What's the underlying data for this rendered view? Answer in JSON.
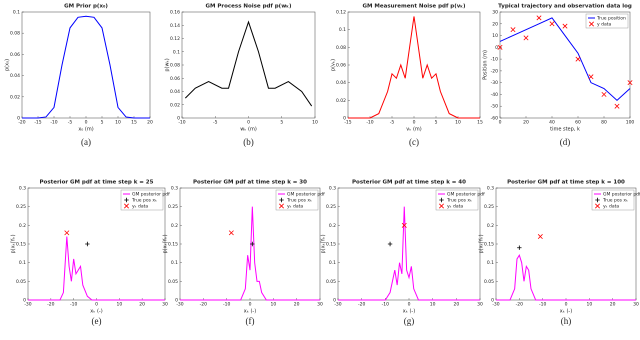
{
  "chart_data": [
    {
      "type": "line",
      "title": "GM Prior p(x₀)",
      "x_label": "x₀ (m)",
      "y_label": "p(x₀)",
      "caption": "(a)",
      "xlim": [
        -20,
        20
      ],
      "ylim": [
        0,
        0.1
      ],
      "xticks": [
        -20,
        -15,
        -10,
        -5,
        0,
        5,
        10,
        15,
        20
      ],
      "yticks": [
        0,
        0.02,
        0.04,
        0.06,
        0.08,
        0.1
      ],
      "x": [
        -20,
        -17.5,
        -15,
        -12.5,
        -10,
        -7.5,
        -5,
        -2.5,
        0,
        2.5,
        5,
        7.5,
        10,
        12.5,
        15,
        17.5,
        20
      ],
      "series": [
        {
          "color": "#0000ff",
          "values": [
            0,
            0,
            0,
            0.001,
            0.01,
            0.05,
            0.085,
            0.095,
            0.096,
            0.095,
            0.085,
            0.05,
            0.01,
            0.001,
            0,
            0,
            0
          ]
        }
      ]
    },
    {
      "type": "line",
      "title": "GM Process Noise pdf p(wₖ)",
      "x_label": "wₖ (m)",
      "y_label": "p(wₖ)",
      "caption": "(b)",
      "xlim": [
        -10,
        10
      ],
      "ylim": [
        0,
        0.16
      ],
      "xticks": [
        -10,
        -5,
        0,
        5,
        10
      ],
      "yticks": [
        0,
        0.02,
        0.04,
        0.06,
        0.08,
        0.1,
        0.12,
        0.14,
        0.16
      ],
      "x": [
        -9.5,
        -8,
        -6,
        -4,
        -3,
        -1.5,
        0,
        1.5,
        3,
        4,
        6,
        8,
        9.5
      ],
      "series": [
        {
          "color": "#000000",
          "values": [
            0.03,
            0.045,
            0.055,
            0.045,
            0.045,
            0.1,
            0.145,
            0.1,
            0.045,
            0.045,
            0.055,
            0.04,
            0.018
          ]
        }
      ]
    },
    {
      "type": "line",
      "title": "GM Measurement Noise pdf p(vₖ)",
      "x_label": "vₖ (m)",
      "y_label": "p(vₖ)",
      "caption": "(c)",
      "xlim": [
        -15,
        15
      ],
      "ylim": [
        0,
        0.12
      ],
      "xticks": [
        -15,
        -10,
        -5,
        0,
        5,
        10,
        15
      ],
      "yticks": [
        0,
        0.02,
        0.04,
        0.06,
        0.08,
        0.1,
        0.12
      ],
      "x": [
        -15,
        -10,
        -8,
        -6,
        -5,
        -4,
        -3,
        -2,
        -1,
        0,
        1,
        2,
        3,
        4,
        5,
        6,
        8,
        10,
        15
      ],
      "series": [
        {
          "color": "#ff0000",
          "values": [
            0,
            0,
            0.005,
            0.03,
            0.05,
            0.045,
            0.06,
            0.045,
            0.08,
            0.115,
            0.08,
            0.045,
            0.06,
            0.045,
            0.05,
            0.03,
            0.005,
            0,
            0
          ]
        }
      ]
    },
    {
      "type": "line",
      "title": "Typical trajectory and observation data log",
      "x_label": "time step, k",
      "y_label": "Position (m)",
      "caption": "(d)",
      "xlim": [
        0,
        100
      ],
      "ylim": [
        -60,
        30
      ],
      "xticks": [
        0,
        20,
        40,
        60,
        80,
        100
      ],
      "yticks": [
        -60,
        -50,
        -40,
        -30,
        -20,
        -10,
        0,
        10,
        20,
        30
      ],
      "x": [
        0,
        10,
        20,
        30,
        40,
        50,
        60,
        70,
        80,
        90,
        100
      ],
      "series": [
        {
          "name": "True position",
          "color": "#0000ff",
          "values": [
            5,
            10,
            15,
            20,
            25,
            10,
            -5,
            -30,
            -35,
            -45,
            -35
          ]
        },
        {
          "name": "y data",
          "color": "#ff0000",
          "style": "cross",
          "values": [
            0,
            15,
            8,
            25,
            20,
            18,
            -10,
            -25,
            -40,
            -50,
            -30
          ]
        }
      ]
    },
    {
      "type": "line",
      "title": "Posterior GM pdf at time step k = 25",
      "x_label": "xₖ (-)",
      "y_label": "p(xₖ|Yₖ)",
      "caption": "(e)",
      "xlim": [
        -30,
        30
      ],
      "ylim": [
        0,
        0.3
      ],
      "xticks": [
        -30,
        -20,
        -10,
        0,
        10,
        20,
        30
      ],
      "yticks": [
        0,
        0.05,
        0.1,
        0.15,
        0.2,
        0.25,
        0.3
      ],
      "x": [
        -30,
        -16,
        -14.5,
        -13,
        -12,
        -11,
        -10,
        -9,
        -8,
        -7,
        -6,
        -4,
        -2,
        30
      ],
      "series": [
        {
          "name": "GM posterior pdf",
          "color": "#ff00ff",
          "values": [
            0,
            0,
            0.02,
            0.17,
            0.09,
            0.05,
            0.11,
            0.07,
            0.08,
            0.09,
            0.04,
            0.01,
            0,
            0
          ]
        },
        {
          "name": "True pos xₖ",
          "color": "#000000",
          "style": "plus",
          "x": [
            -4
          ],
          "values": [
            0.15
          ]
        },
        {
          "name": "yₖ data",
          "color": "#ff0000",
          "style": "cross",
          "x": [
            -13
          ],
          "values": [
            0.18
          ]
        }
      ]
    },
    {
      "type": "line",
      "title": "Posterior GM pdf at time step k = 30",
      "x_label": "xₖ (-)",
      "y_label": "p(xₖ|Yₖ)",
      "caption": "(f)",
      "xlim": [
        -30,
        30
      ],
      "ylim": [
        0,
        0.3
      ],
      "xticks": [
        -30,
        -20,
        -10,
        0,
        10,
        20,
        30
      ],
      "yticks": [
        0,
        0.05,
        0.1,
        0.15,
        0.2,
        0.25,
        0.3
      ],
      "x": [
        -30,
        -4,
        -2,
        -1,
        0,
        1,
        2,
        3,
        4,
        5,
        7,
        30
      ],
      "series": [
        {
          "name": "GM posterior pdf",
          "color": "#ff00ff",
          "values": [
            0,
            0,
            0.03,
            0.12,
            0.08,
            0.25,
            0.1,
            0.05,
            0.05,
            0.02,
            0,
            0
          ]
        },
        {
          "name": "True pos xₖ",
          "color": "#000000",
          "style": "plus",
          "x": [
            1
          ],
          "values": [
            0.15
          ]
        },
        {
          "name": "yₖ data",
          "color": "#ff0000",
          "style": "cross",
          "x": [
            -8
          ],
          "values": [
            0.18
          ]
        }
      ]
    },
    {
      "type": "line",
      "title": "Posterior GM pdf at time step k = 40",
      "x_label": "xₖ (-)",
      "y_label": "p(xₖ|Yₖ)",
      "caption": "(g)",
      "xlim": [
        -30,
        30
      ],
      "ylim": [
        0,
        0.3
      ],
      "xticks": [
        -30,
        -20,
        -10,
        0,
        10,
        20,
        30
      ],
      "yticks": [
        0,
        0.05,
        0.1,
        0.15,
        0.2,
        0.25,
        0.3
      ],
      "x": [
        -30,
        -10,
        -8,
        -6,
        -5,
        -4,
        -3,
        -2,
        -1,
        0,
        1,
        2,
        4,
        30
      ],
      "series": [
        {
          "name": "GM posterior pdf",
          "color": "#ff00ff",
          "values": [
            0,
            0,
            0.02,
            0.08,
            0.04,
            0.1,
            0.07,
            0.25,
            0.08,
            0.06,
            0.09,
            0.03,
            0,
            0
          ]
        },
        {
          "name": "True pos xₖ",
          "color": "#000000",
          "style": "plus",
          "x": [
            -8
          ],
          "values": [
            0.15
          ]
        },
        {
          "name": "yₖ data",
          "color": "#ff0000",
          "style": "cross",
          "x": [
            -2
          ],
          "values": [
            0.2
          ]
        }
      ]
    },
    {
      "type": "line",
      "title": "Posterior GM pdf at time step k = 100",
      "x_label": "xₖ (-)",
      "y_label": "p(xₖ|Yₖ)",
      "caption": "(h)",
      "xlim": [
        -30,
        30
      ],
      "ylim": [
        0,
        0.3
      ],
      "xticks": [
        -30,
        -20,
        -10,
        0,
        10,
        20,
        30
      ],
      "yticks": [
        0,
        0.05,
        0.1,
        0.15,
        0.2,
        0.25,
        0.3
      ],
      "x": [
        -30,
        -24,
        -22,
        -21,
        -20,
        -19,
        -18,
        -17,
        -16,
        -15,
        -13,
        30
      ],
      "series": [
        {
          "name": "GM posterior pdf",
          "color": "#ff00ff",
          "values": [
            0,
            0,
            0.03,
            0.11,
            0.12,
            0.1,
            0.05,
            0.09,
            0.08,
            0.03,
            0,
            0
          ]
        },
        {
          "name": "True pos xₖ",
          "color": "#000000",
          "style": "plus",
          "x": [
            -20
          ],
          "values": [
            0.14
          ]
        },
        {
          "name": "yₖ data",
          "color": "#ff0000",
          "style": "cross",
          "x": [
            -11
          ],
          "values": [
            0.17
          ]
        }
      ]
    }
  ]
}
